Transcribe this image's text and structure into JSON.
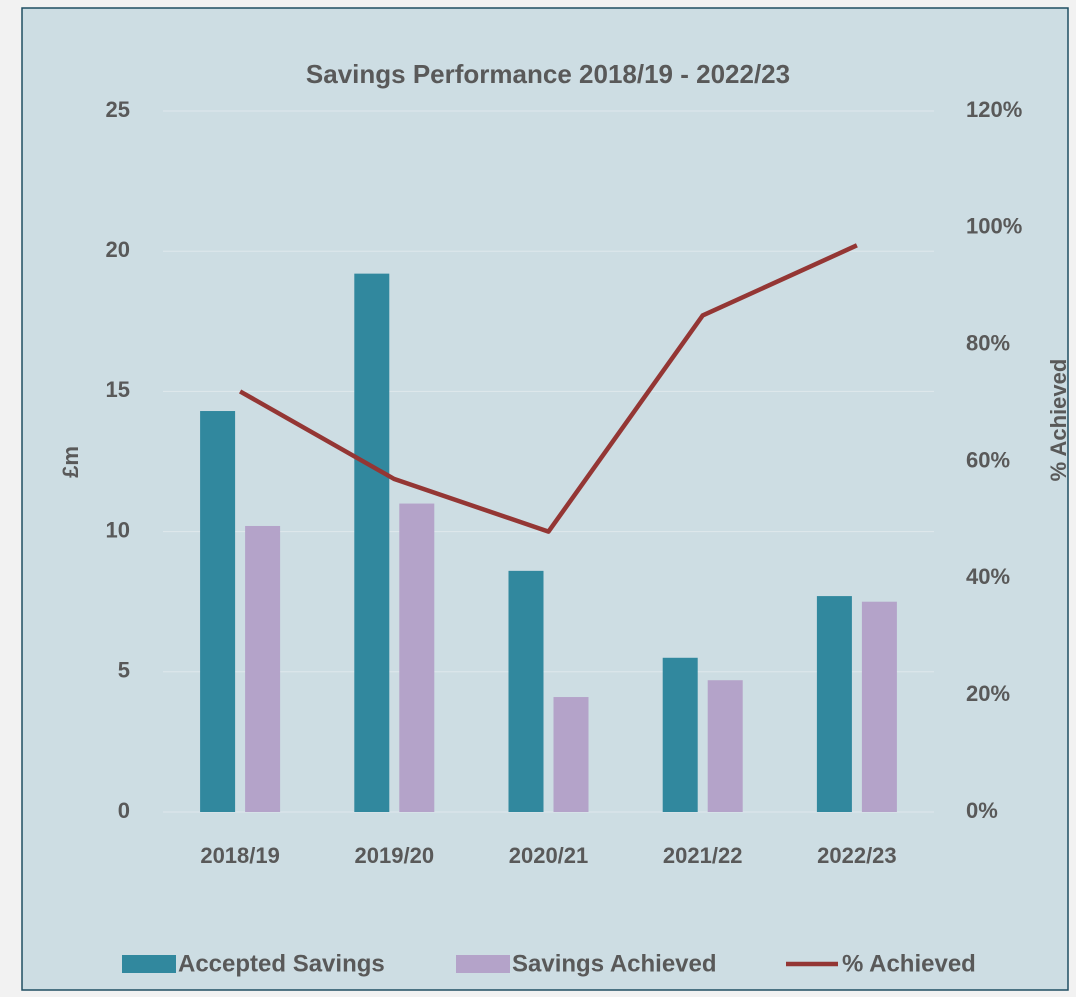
{
  "chart_data": {
    "type": "bar",
    "title": "Savings Performance 2018/19 - 2022/23",
    "y_label": "£m",
    "y2_label": "% Achieved",
    "categories": [
      "2018/19",
      "2019/20",
      "2020/21",
      "2021/22",
      "2022/23"
    ],
    "series": [
      {
        "name": "Accepted Savings",
        "type": "bar",
        "color": "#31889e",
        "values": [
          14.3,
          19.2,
          8.6,
          5.5,
          7.7
        ]
      },
      {
        "name": "Savings Achieved",
        "type": "bar",
        "color": "#b4a3c9",
        "values": [
          10.2,
          11.0,
          4.1,
          4.7,
          7.5
        ]
      },
      {
        "name": "% Achieved",
        "type": "line",
        "axis": "y2",
        "color": "#943634",
        "values": [
          72,
          57,
          48,
          85,
          97
        ]
      }
    ],
    "ylim": [
      0,
      25
    ],
    "yticks": [
      0,
      5,
      10,
      15,
      20,
      25
    ],
    "y2lim": [
      0,
      120
    ],
    "y2ticks": [
      {
        "value": 0,
        "label": "0%"
      },
      {
        "value": 20,
        "label": "20%"
      },
      {
        "value": 40,
        "label": "40%"
      },
      {
        "value": 60,
        "label": "60%"
      },
      {
        "value": 80,
        "label": "80%"
      },
      {
        "value": 100,
        "label": "100%"
      },
      {
        "value": 120,
        "label": "120%"
      }
    ],
    "grid": true,
    "legend": "bottom"
  }
}
